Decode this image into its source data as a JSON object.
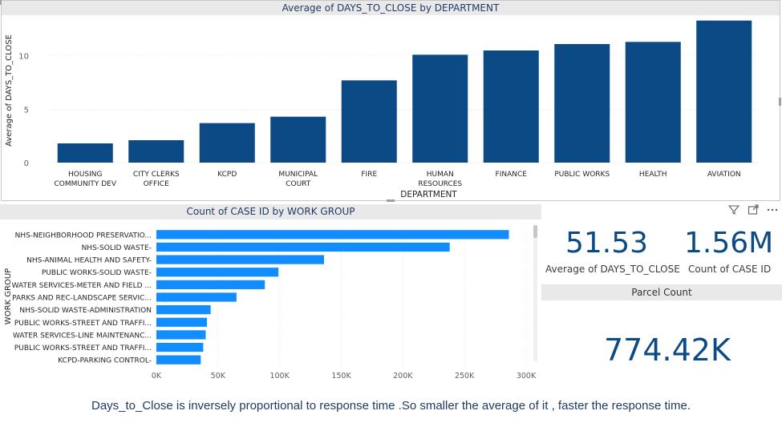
{
  "top_chart": {
    "title": "Average of DAYS_TO_CLOSE by DEPARTMENT",
    "chart_data": {
      "type": "bar",
      "title": "Average of DAYS_TO_CLOSE by DEPARTMENT",
      "xlabel": "DEPARTMENT",
      "ylabel": "Average of DAYS_TO_CLOSE",
      "ylim": [
        0,
        13.5
      ],
      "yticks": [
        0,
        5,
        10
      ],
      "grid": true,
      "categories": [
        [
          "HOUSING",
          "COMMUNITY DEV"
        ],
        [
          "CITY CLERKS",
          "OFFICE"
        ],
        [
          "KCPD"
        ],
        [
          "MUNICIPAL",
          "COURT"
        ],
        [
          "FIRE"
        ],
        [
          "HUMAN",
          "RESOURCES"
        ],
        [
          "FINANCE"
        ],
        [
          "PUBLIC WORKS"
        ],
        [
          "HEALTH"
        ],
        [
          "AVIATION"
        ]
      ],
      "values": [
        1.8,
        2.1,
        3.7,
        4.3,
        7.7,
        10.1,
        10.5,
        11.1,
        11.3,
        13.3
      ],
      "bar_color": "#0b4a85"
    }
  },
  "bottom_chart": {
    "title": "Count of CASE ID by WORK GROUP",
    "chart_data": {
      "type": "bar",
      "orientation": "horizontal",
      "title": "Count of CASE ID by WORK GROUP",
      "xlabel": "Count of CASE ID",
      "ylabel": "WORK GROUP",
      "xlim": [
        0,
        300000
      ],
      "xticks": [
        0,
        50000,
        100000,
        150000,
        200000,
        250000,
        300000
      ],
      "xtick_labels": [
        "0K",
        "50K",
        "100K",
        "150K",
        "200K",
        "250K",
        "300K"
      ],
      "grid": true,
      "categories": [
        "NHS-NEIGHBORHOOD PRESERVATIO...",
        "NHS-SOLID WASTE-",
        "NHS-ANIMAL HEALTH AND SAFETY-",
        "PUBLIC WORKS-SOLID WASTE-",
        "WATER SERVICES-METER AND FIELD ...",
        "PARKS AND REC-LANDSCAPE SERVIC...",
        "NHS-SOLID WASTE-ADMINISTRATION",
        "PUBLIC WORKS-STREET AND TRAFFI...",
        "WATER SERVICES-LINE MAINTENANC...",
        "PUBLIC WORKS-STREET AND TRAFFI...",
        "KCPD-PARKING CONTROL-"
      ],
      "values": [
        286000,
        238000,
        136000,
        99000,
        88000,
        65000,
        44000,
        41000,
        40000,
        38000,
        36000
      ],
      "bar_color": "#118dff"
    }
  },
  "kpis": {
    "avg_value": "51.53",
    "avg_label": "Average of DAYS_TO_CLOSE",
    "count_value": "1.56M",
    "count_label": "Count of CASE ID",
    "parcel_header": "Parcel Count",
    "parcel_value": "774.42K"
  },
  "toolbar": {
    "filter_icon": "funnel-icon",
    "focus_icon": "focus-mode-icon",
    "more_icon": "more-options-icon"
  },
  "footnote": "Days_to_Close is inversely proportional to response time .So smaller the average of it , faster the response time."
}
